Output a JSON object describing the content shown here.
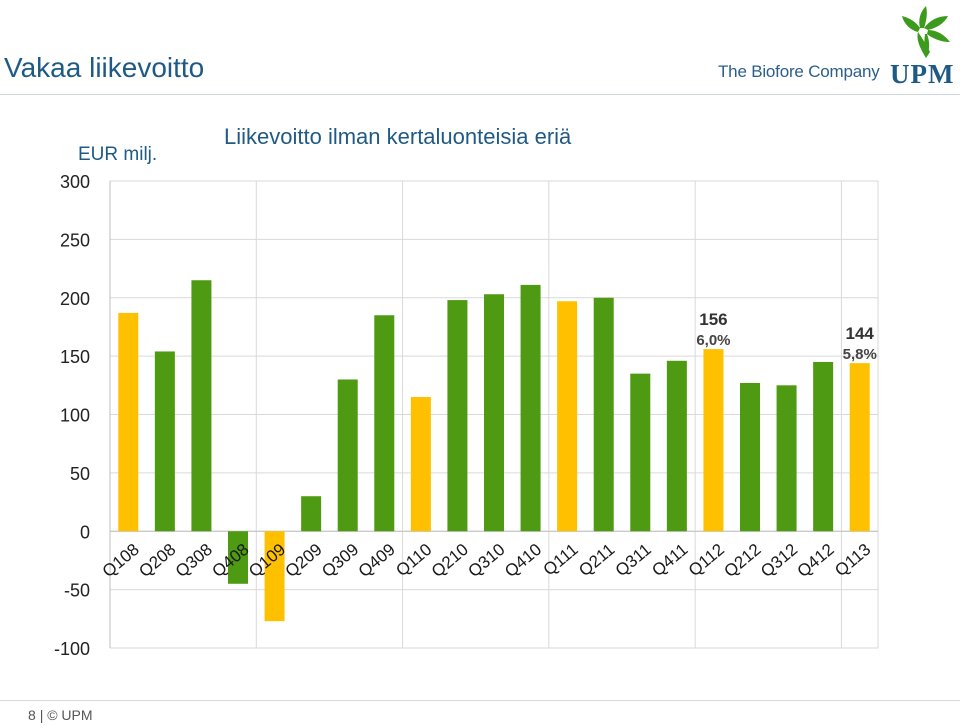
{
  "header": {
    "title": "Vakaa liikevoitto",
    "tagline": "The Biofore Company",
    "brand": "UPM",
    "logo_icon": "griffin-leaf-icon"
  },
  "colors": {
    "green": "#4e9a12",
    "yellow": "#ffc000",
    "title_blue": "#1f5a86"
  },
  "footer": {
    "page": "8",
    "separator": "|",
    "copyright": "© UPM"
  },
  "chart_data": {
    "type": "bar",
    "title": "Liikevoitto ilman kertaluonteisia eriä",
    "ylabel": "EUR milj.",
    "ylim": [
      -100,
      300
    ],
    "yticks": [
      300,
      250,
      200,
      150,
      100,
      50,
      0,
      -50,
      -100
    ],
    "grid": true,
    "categories": [
      "Q108",
      "Q208",
      "Q308",
      "Q408",
      "Q109",
      "Q209",
      "Q309",
      "Q409",
      "Q110",
      "Q210",
      "Q310",
      "Q410",
      "Q111",
      "Q211",
      "Q311",
      "Q411",
      "Q112",
      "Q212",
      "Q312",
      "Q412",
      "Q113"
    ],
    "values": [
      187,
      154,
      215,
      -45,
      -77,
      30,
      130,
      185,
      115,
      198,
      203,
      211,
      197,
      200,
      135,
      146,
      156,
      127,
      125,
      145,
      144
    ],
    "highlight": [
      "yellow",
      "green",
      "green",
      "green",
      "yellow",
      "green",
      "green",
      "green",
      "yellow",
      "green",
      "green",
      "green",
      "yellow",
      "green",
      "green",
      "green",
      "yellow",
      "green",
      "green",
      "green",
      "yellow"
    ],
    "annotations": [
      {
        "category": "Q112",
        "value": "156",
        "margin": "6,0%"
      },
      {
        "category": "Q113",
        "value": "144",
        "margin": "5,8%"
      }
    ]
  }
}
